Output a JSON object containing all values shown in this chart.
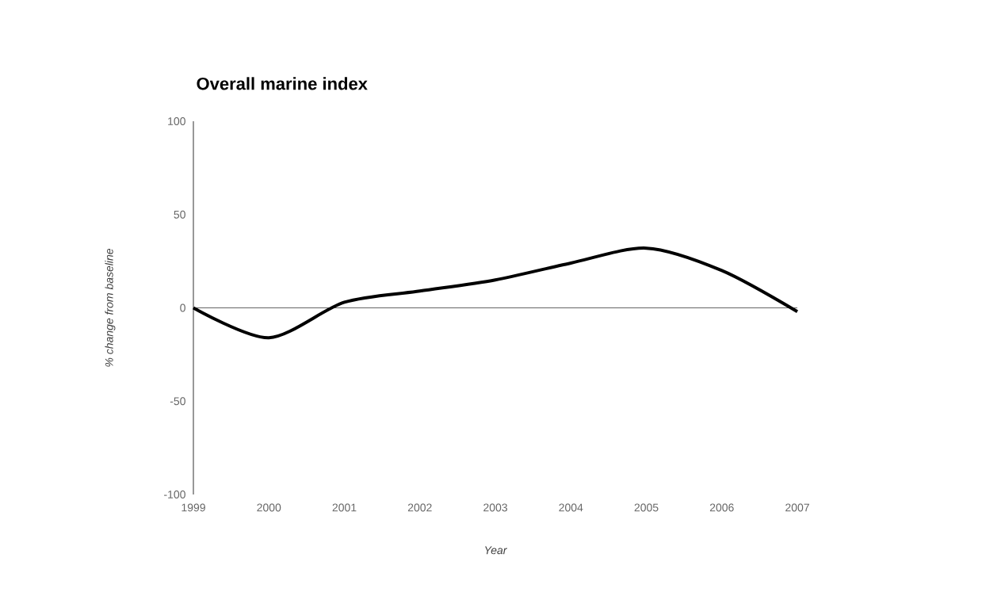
{
  "chart_data": {
    "type": "line",
    "title": "Overall marine index",
    "xlabel": "Year",
    "ylabel": "% change from baseline",
    "x": [
      1999,
      2000,
      2001,
      2002,
      2003,
      2004,
      2005,
      2006,
      2007
    ],
    "series": [
      {
        "color": "#000000",
        "values": [
          0,
          -16,
          3,
          9,
          15,
          24,
          32,
          20,
          -2
        ]
      }
    ],
    "xlim": [
      1999,
      2007
    ],
    "xticks": [
      1999,
      2000,
      2001,
      2002,
      2003,
      2004,
      2005,
      2006,
      2007
    ],
    "ylim": [
      -100,
      100
    ],
    "yticks": [
      -100,
      -50,
      0,
      50,
      100
    ],
    "ref_lines": [
      {
        "axis": "y",
        "value": 0,
        "color": "#666666"
      }
    ],
    "grid": false,
    "marker": "none",
    "line_style": "solid"
  }
}
